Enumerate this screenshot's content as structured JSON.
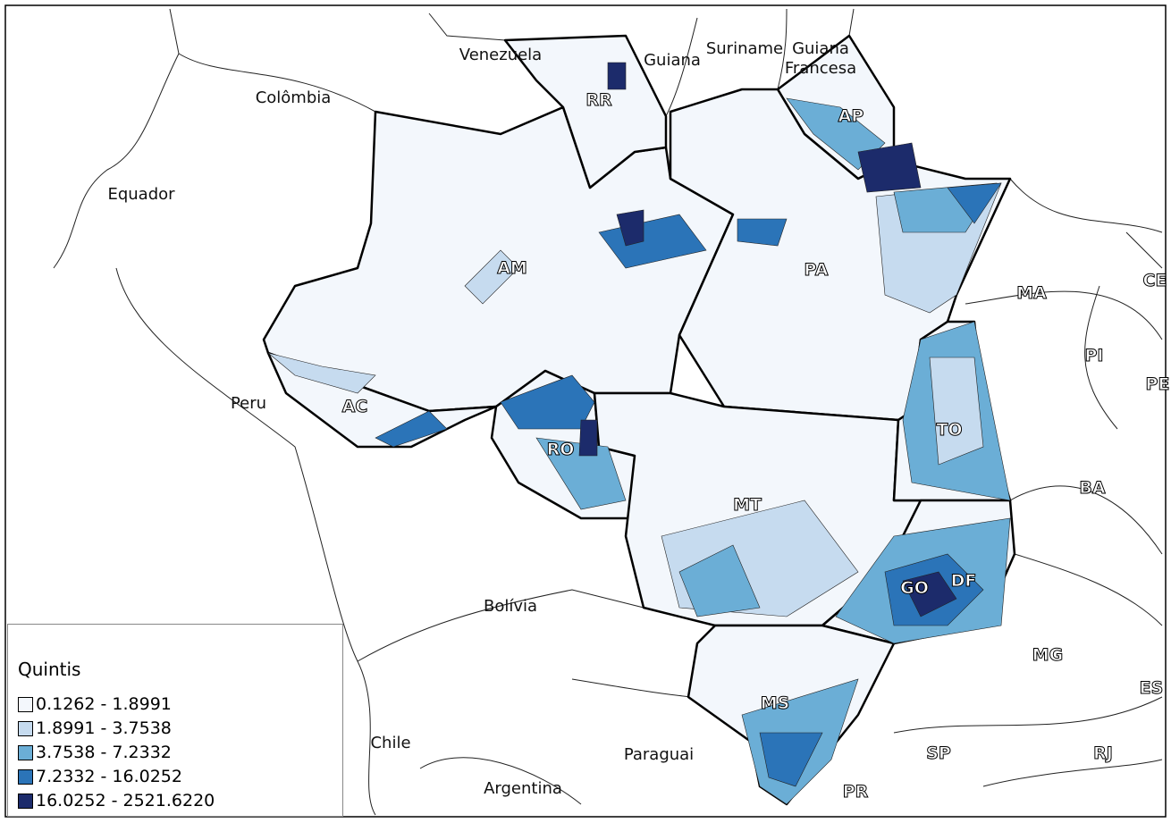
{
  "map": {
    "countries": [
      "Venezuela",
      "Guiana",
      "Suriname",
      "Guiana Francesa",
      "Colômbia",
      "Equador",
      "Peru",
      "Bolívia",
      "Chile",
      "Paraguai",
      "Argentina"
    ],
    "states": [
      "RR",
      "AP",
      "AM",
      "PA",
      "MA",
      "PI",
      "CE",
      "PE",
      "AC",
      "RO",
      "TO",
      "BA",
      "MT",
      "GO",
      "DF",
      "MG",
      "ES",
      "MS",
      "SP",
      "RJ",
      "PR"
    ],
    "legend": {
      "title": "Quintis",
      "items": [
        {
          "label": "0.1262 - 1.8991",
          "color": "#f3f7fc"
        },
        {
          "label": "1.8991 - 3.7538",
          "color": "#c6dbef"
        },
        {
          "label": "3.7538 - 7.2332",
          "color": "#6baed6"
        },
        {
          "label": "7.2332 - 16.0252",
          "color": "#2b74b8"
        },
        {
          "label": "16.0252 - 2521.6220",
          "color": "#1c2b6b"
        }
      ]
    }
  }
}
